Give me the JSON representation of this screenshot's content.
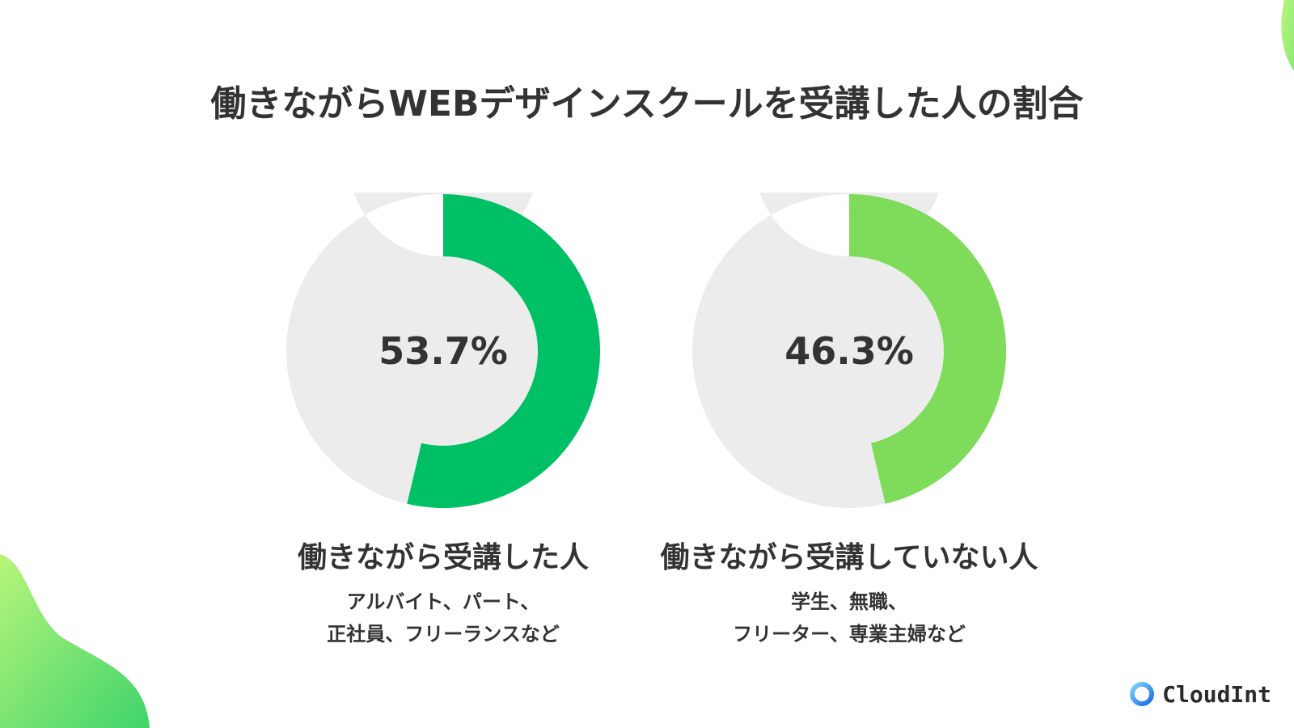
{
  "colors": {
    "track": "#ececec",
    "accent_dark": "#00c066",
    "accent_light": "#7fdb5a",
    "blob": "#6fe07a"
  },
  "title": "働きながらWEBデザインスクールを受講した人の割合",
  "logo": {
    "icon": "cloud-ring-logo-icon",
    "text": "CloudInt"
  },
  "chart_data": [
    {
      "type": "pie",
      "value": 53.7,
      "unit": "%",
      "value_label": "53.7%",
      "color": "#00c066",
      "category": "働きながら受講した人",
      "description_lines": [
        "アルバイト、パート、",
        "正社員、フリーランスなど"
      ]
    },
    {
      "type": "pie",
      "value": 46.3,
      "unit": "%",
      "value_label": "46.3%",
      "color": "#7fdb5a",
      "category": "働きながら受講していない人",
      "description_lines": [
        "学生、無職、",
        "フリーター、専業主婦など"
      ]
    }
  ]
}
